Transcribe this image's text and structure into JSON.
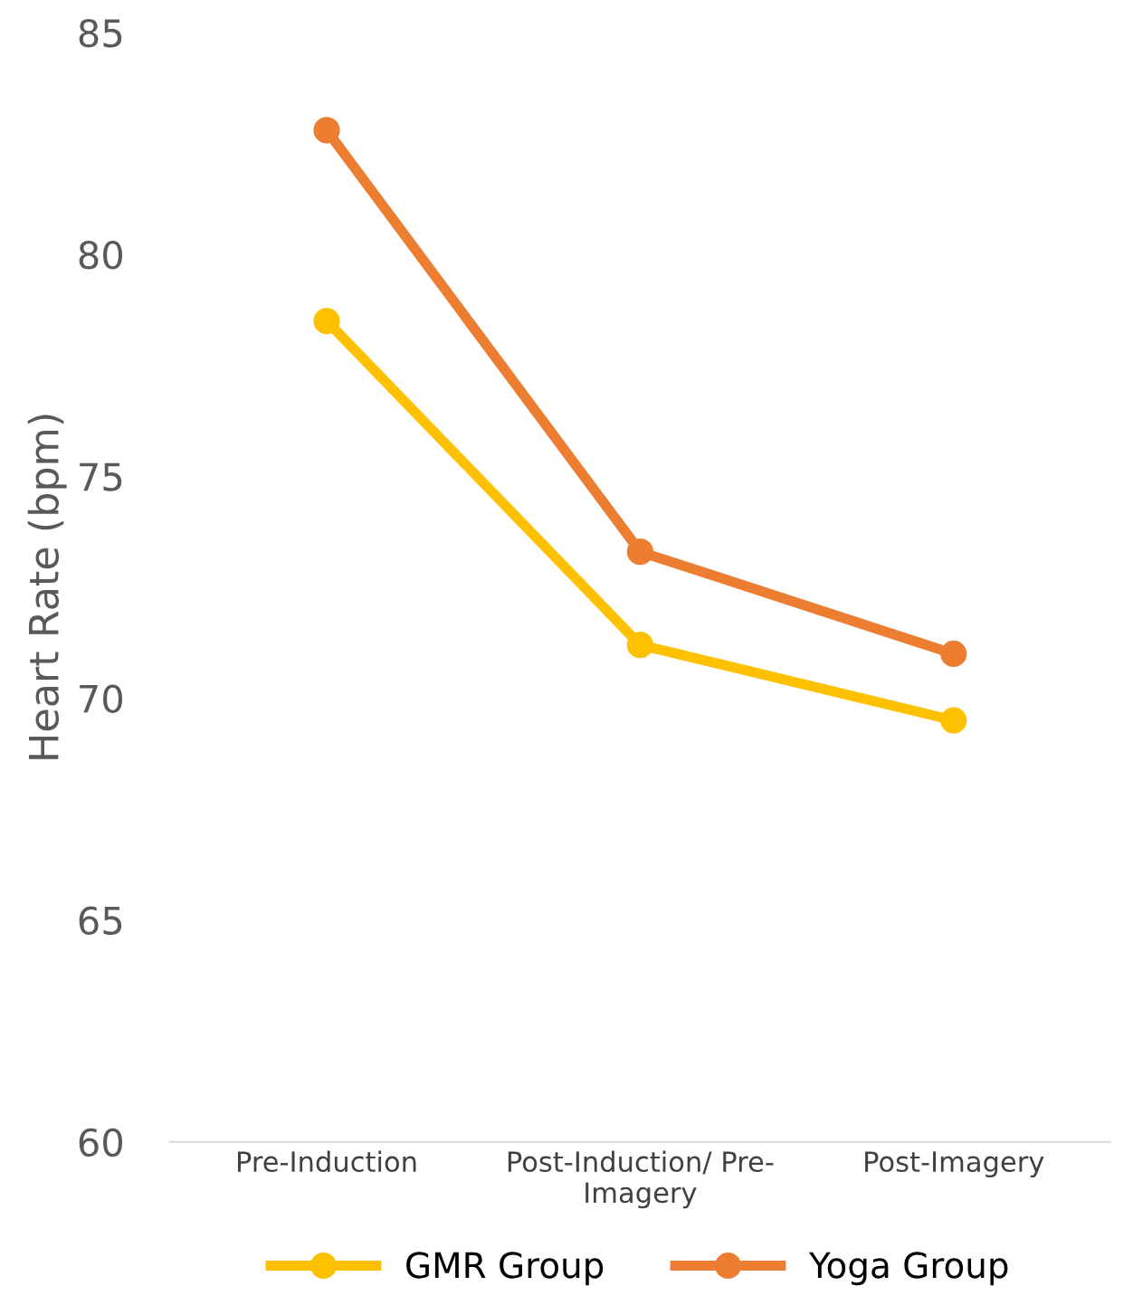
{
  "chart_data": {
    "type": "line",
    "ylabel": "Heart Rate (bpm)",
    "categories": [
      "Pre-Induction",
      "Post-Induction/ Pre-\nImagery",
      "Post-Imagery"
    ],
    "series": [
      {
        "name": "GMR Group",
        "color": "#ffc000",
        "values": [
          78.5,
          71.2,
          69.5
        ]
      },
      {
        "name": "Yoga Group",
        "color": "#ed7d31",
        "values": [
          82.8,
          73.3,
          71.0
        ]
      }
    ],
    "ylim": [
      60,
      85
    ],
    "yticks": [
      60,
      65,
      70,
      75,
      80,
      85
    ],
    "grid": false,
    "legend": "bottom",
    "marker": "circle",
    "line_style": "solid"
  }
}
